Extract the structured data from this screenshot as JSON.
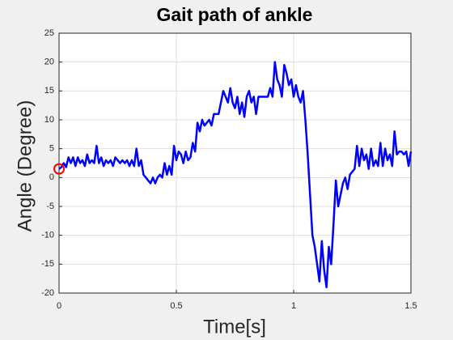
{
  "chart_data": {
    "type": "line",
    "title": "Gait path of ankle",
    "xlabel": "Time[s]",
    "ylabel": "Angle (Degree)",
    "x": [
      0,
      0.01,
      0.02,
      0.03,
      0.04,
      0.05,
      0.06,
      0.07,
      0.08,
      0.09,
      0.1,
      0.11,
      0.12,
      0.13,
      0.14,
      0.15,
      0.16,
      0.17,
      0.18,
      0.19,
      0.2,
      0.21,
      0.22,
      0.23,
      0.24,
      0.25,
      0.26,
      0.27,
      0.28,
      0.29,
      0.3,
      0.31,
      0.32,
      0.33,
      0.34,
      0.35,
      0.36,
      0.37,
      0.38,
      0.39,
      0.4,
      0.41,
      0.42,
      0.43,
      0.44,
      0.45,
      0.46,
      0.47,
      0.48,
      0.49,
      0.5,
      0.51,
      0.52,
      0.53,
      0.54,
      0.55,
      0.56,
      0.57,
      0.58,
      0.59,
      0.6,
      0.61,
      0.62,
      0.63,
      0.64,
      0.65,
      0.66,
      0.67,
      0.68,
      0.69,
      0.7,
      0.71,
      0.72,
      0.73,
      0.74,
      0.75,
      0.76,
      0.77,
      0.78,
      0.79,
      0.8,
      0.81,
      0.82,
      0.83,
      0.84,
      0.85,
      0.86,
      0.87,
      0.88,
      0.89,
      0.9,
      0.91,
      0.92,
      0.93,
      0.94,
      0.95,
      0.96,
      0.97,
      0.98,
      0.99,
      1,
      1.01,
      1.02,
      1.03,
      1.04,
      1.05,
      1.06,
      1.07,
      1.08,
      1.09,
      1.1,
      1.11,
      1.12,
      1.13,
      1.14,
      1.15,
      1.16,
      1.17,
      1.18,
      1.19,
      1.2,
      1.21,
      1.22,
      1.23,
      1.24,
      1.25,
      1.26,
      1.27,
      1.28,
      1.29,
      1.3,
      1.31,
      1.32,
      1.33,
      1.34,
      1.35,
      1.36,
      1.37,
      1.38,
      1.39,
      1.4,
      1.41,
      1.42,
      1.43,
      1.44,
      1.45,
      1.46,
      1.47,
      1.48,
      1.49,
      1.5
    ],
    "series": [
      {
        "color": "#0000ff",
        "values": [
          1.5,
          1.8,
          2.5,
          1.8,
          3.5,
          2.5,
          3.5,
          2,
          3.5,
          2.5,
          3,
          2,
          4,
          2.5,
          3,
          2.5,
          5.5,
          2.5,
          3.5,
          2,
          3,
          2.5,
          3,
          2,
          3.5,
          3,
          2.5,
          3,
          2.5,
          3,
          2,
          3,
          2,
          5,
          2,
          3,
          0.5,
          0,
          -0.5,
          -1,
          0,
          -1,
          0,
          0.5,
          0,
          2.5,
          0.5,
          2,
          0.5,
          5.5,
          3,
          4.5,
          4,
          2.5,
          4.5,
          3,
          3.5,
          6,
          4.5,
          9.5,
          8,
          10,
          9,
          9.5,
          10,
          9,
          11,
          11,
          11,
          13,
          15,
          14,
          13,
          15.5,
          13,
          12,
          14,
          11,
          13,
          10.5,
          14,
          15,
          13,
          14,
          11,
          14,
          14,
          14,
          14,
          14,
          15.5,
          14,
          20,
          17,
          16,
          14,
          19.5,
          18,
          16,
          17,
          14,
          16,
          14,
          13,
          15,
          10,
          4,
          -3,
          -10,
          -12,
          -15,
          -18,
          -11,
          -16,
          -19,
          -12,
          -15,
          -8,
          -0.5,
          -5,
          -3,
          -1,
          0,
          -2,
          0.5,
          1,
          1.5,
          5.5,
          2,
          5,
          3,
          4,
          1.5,
          5,
          2,
          3,
          2,
          6,
          2,
          5,
          3,
          4,
          2,
          8,
          4,
          4.5,
          4.5,
          4,
          4.5,
          2,
          4.5
        ]
      }
    ],
    "start_marker": {
      "x": 0,
      "y": 1.5,
      "color": "#ff0000"
    },
    "xlim": [
      0,
      1.5
    ],
    "xticks": [
      0,
      0.5,
      1,
      1.5
    ],
    "ylim": [
      -20,
      25
    ],
    "yticks": [
      -20,
      -15,
      -10,
      -5,
      0,
      5,
      10,
      15,
      20,
      25
    ],
    "grid": true
  }
}
